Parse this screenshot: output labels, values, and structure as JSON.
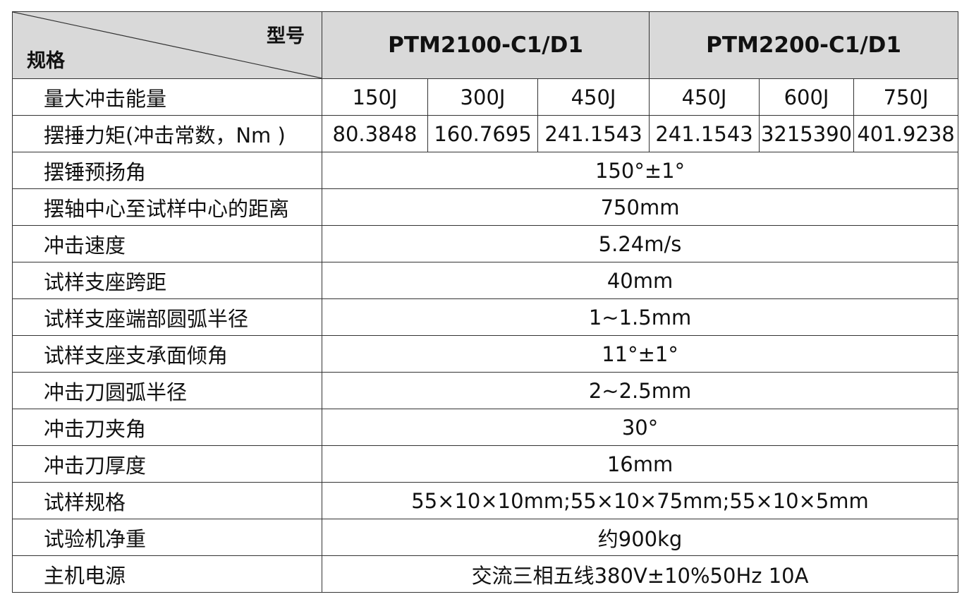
{
  "header": {
    "corner_top": "型号",
    "corner_bottom": "规格",
    "models": [
      "PTM2100-C1/D1",
      "PTM2200-C1/D1"
    ]
  },
  "rows": [
    {
      "label": "量大冲击能量",
      "values": [
        "150J",
        "300J",
        "450J",
        "450J",
        "600J",
        "750J"
      ]
    },
    {
      "label": "摆捶力矩(冲击常数，Nm )",
      "values": [
        "80.3848",
        "160.7695",
        "241.1543",
        "241.1543",
        "3215390",
        "401.9238"
      ]
    },
    {
      "label": "摆锤预扬角",
      "values": [
        "150°±1°"
      ]
    },
    {
      "label": "摆轴中心至试样中心的距离",
      "values": [
        "750mm"
      ]
    },
    {
      "label": "冲击速度",
      "values": [
        "5.24m/s"
      ]
    },
    {
      "label": "试样支座跨距",
      "values": [
        "40mm"
      ]
    },
    {
      "label": "试样支座端部圆弧半径",
      "values": [
        "1~1.5mm"
      ]
    },
    {
      "label": "试样支座支承面倾角",
      "values": [
        "11°±1°"
      ]
    },
    {
      "label": "冲击刀圆弧半径",
      "values": [
        "2~2.5mm"
      ]
    },
    {
      "label": "冲击刀夹角",
      "values": [
        "30°"
      ]
    },
    {
      "label": "冲击刀厚度",
      "values": [
        "16mm"
      ]
    },
    {
      "label": "试样规格",
      "values": [
        "55×10×10mm;55×10×75mm;55×10×5mm"
      ]
    },
    {
      "label": "试验机净重",
      "values": [
        "约900kg"
      ]
    },
    {
      "label": "主机电源",
      "values": [
        "交流三相五线380V±10%50Hz 10A"
      ]
    }
  ]
}
